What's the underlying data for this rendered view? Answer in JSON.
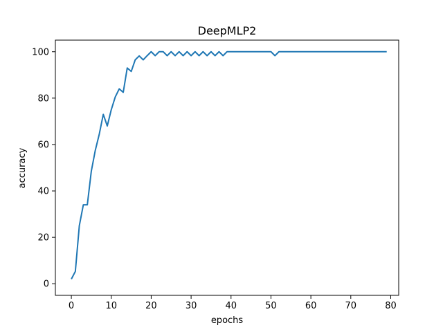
{
  "chart_data": {
    "type": "line",
    "title": "DeepMLP2",
    "xlabel": "epochs",
    "ylabel": "accuracy",
    "xlim": [
      -4,
      82
    ],
    "ylim": [
      -5,
      105
    ],
    "xticks": [
      0,
      10,
      20,
      30,
      40,
      50,
      60,
      70,
      80
    ],
    "yticks": [
      0,
      20,
      40,
      60,
      80,
      100
    ],
    "grid": false,
    "series": [
      {
        "color": "#1f77b4",
        "x": [
          0,
          1,
          2,
          3,
          4,
          5,
          6,
          7,
          8,
          9,
          10,
          11,
          12,
          13,
          14,
          15,
          16,
          17,
          18,
          19,
          20,
          21,
          22,
          23,
          24,
          25,
          26,
          27,
          28,
          29,
          30,
          31,
          32,
          33,
          34,
          35,
          36,
          37,
          38,
          39,
          40,
          41,
          42,
          43,
          44,
          45,
          46,
          47,
          48,
          49,
          50,
          51,
          52,
          53,
          54,
          55,
          56,
          57,
          58,
          59,
          60,
          61,
          62,
          63,
          64,
          65,
          66,
          67,
          68,
          69,
          70,
          71,
          72,
          73,
          74,
          75,
          76,
          77,
          78,
          79
        ],
        "y": [
          2,
          5.3,
          25,
          34,
          34,
          48.5,
          57.5,
          64.5,
          73,
          68,
          75,
          80.5,
          84,
          82.5,
          93,
          91.5,
          96.5,
          98.2,
          96.5,
          98.3,
          100,
          98.3,
          100,
          100,
          98.3,
          100,
          98.3,
          100,
          98.3,
          100,
          98.3,
          100,
          98.3,
          100,
          98.3,
          100,
          98.3,
          100,
          98.3,
          100,
          100,
          100,
          100,
          100,
          100,
          100,
          100,
          100,
          100,
          100,
          100,
          98.3,
          100,
          100,
          100,
          100,
          100,
          100,
          100,
          100,
          100,
          100,
          100,
          100,
          100,
          100,
          100,
          100,
          100,
          100,
          100,
          100,
          100,
          100,
          100,
          100,
          100,
          100,
          100,
          100
        ]
      }
    ]
  }
}
